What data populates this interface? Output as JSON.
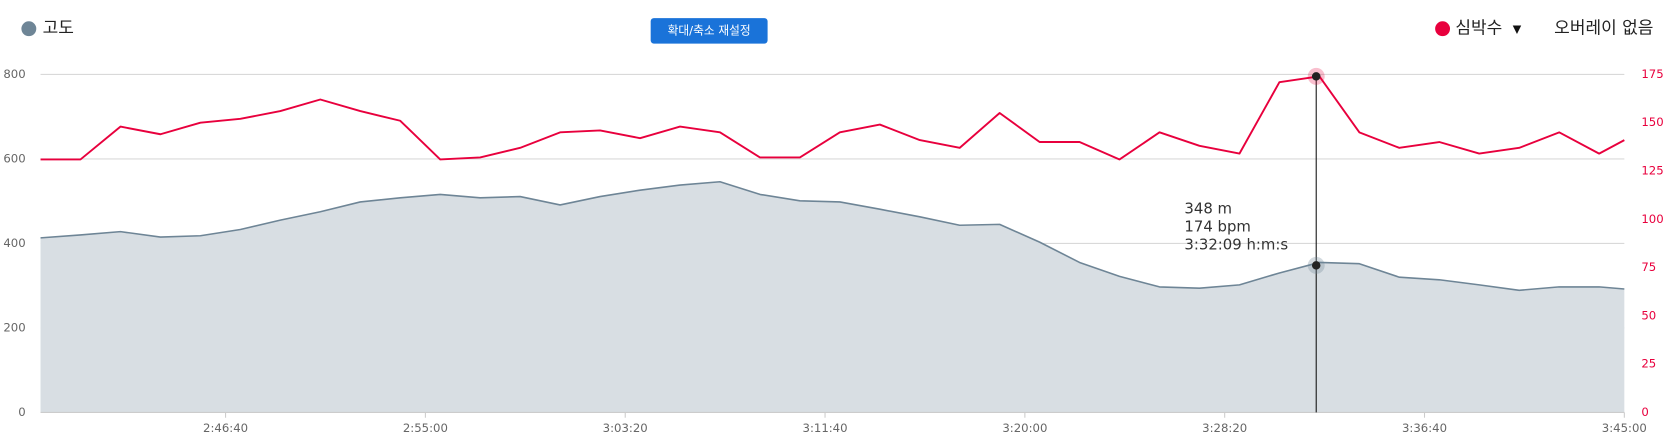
{
  "chart_data": {
    "type": "area_line",
    "reset_zoom_button": "확대/축소 재설정",
    "overlay_label": "오버레이 없음",
    "x": [
      9537,
      9637,
      9737,
      9837,
      9937,
      10037,
      10137,
      10237,
      10337,
      10437,
      10537,
      10637,
      10737,
      10837,
      10937,
      11037,
      11137,
      11237,
      11337,
      11437,
      11537,
      11637,
      11737,
      11837,
      11937,
      12037,
      12137,
      12237,
      12337,
      12437,
      12537,
      12637,
      12737,
      12837,
      12937,
      13037,
      13137,
      13237,
      13337,
      13437,
      13500
    ],
    "series": [
      {
        "name": "고도",
        "color": "#6e8596",
        "fill": "#d8dee3",
        "values": [
          413,
          420,
          428,
          415,
          418,
          433,
          455,
          475,
          498,
          508,
          516,
          508,
          511,
          491,
          511,
          526,
          538,
          546,
          516,
          501,
          498,
          481,
          463,
          443,
          445,
          403,
          355,
          322,
          297,
          294,
          302,
          330,
          355,
          352,
          320,
          314,
          302,
          289,
          297,
          297,
          292
        ]
      },
      {
        "name": "심박수",
        "color": "#e8003d",
        "axis": "y2",
        "values": [
          131,
          131,
          148,
          144,
          150,
          152,
          156,
          162,
          156,
          151,
          131,
          132,
          137,
          145,
          146,
          142,
          148,
          145,
          132,
          132,
          145,
          149,
          141,
          137,
          155,
          140,
          140,
          131,
          145,
          138,
          134,
          171,
          174,
          145,
          137,
          140,
          134,
          137,
          145,
          134,
          141
        ]
      }
    ],
    "xlim": [
      9537,
      13500
    ],
    "xticks": [
      {
        "value": 10000,
        "label": "2:46:40"
      },
      {
        "value": 10500,
        "label": "2:55:00"
      },
      {
        "value": 11000,
        "label": "3:03:20"
      },
      {
        "value": 11500,
        "label": "3:11:40"
      },
      {
        "value": 12000,
        "label": "3:20:00"
      },
      {
        "value": 12500,
        "label": "3:28:20"
      },
      {
        "value": 13000,
        "label": "3:36:40"
      },
      {
        "value": 13500,
        "label": "3:45:00"
      }
    ],
    "ylim": [
      0,
      800
    ],
    "yticks": [
      0,
      200,
      400,
      600,
      800
    ],
    "y2lim": [
      0,
      175
    ],
    "y2ticks": [
      0,
      25,
      50,
      75,
      100,
      125,
      150,
      175
    ],
    "grid": true,
    "tooltip": {
      "elevation": {
        "value": 348,
        "label": "348 m"
      },
      "heart_rate": {
        "value": 174,
        "label": "174 bpm"
      },
      "x": {
        "value": 12729,
        "label": "3:32:09 h:m:s"
      }
    }
  }
}
